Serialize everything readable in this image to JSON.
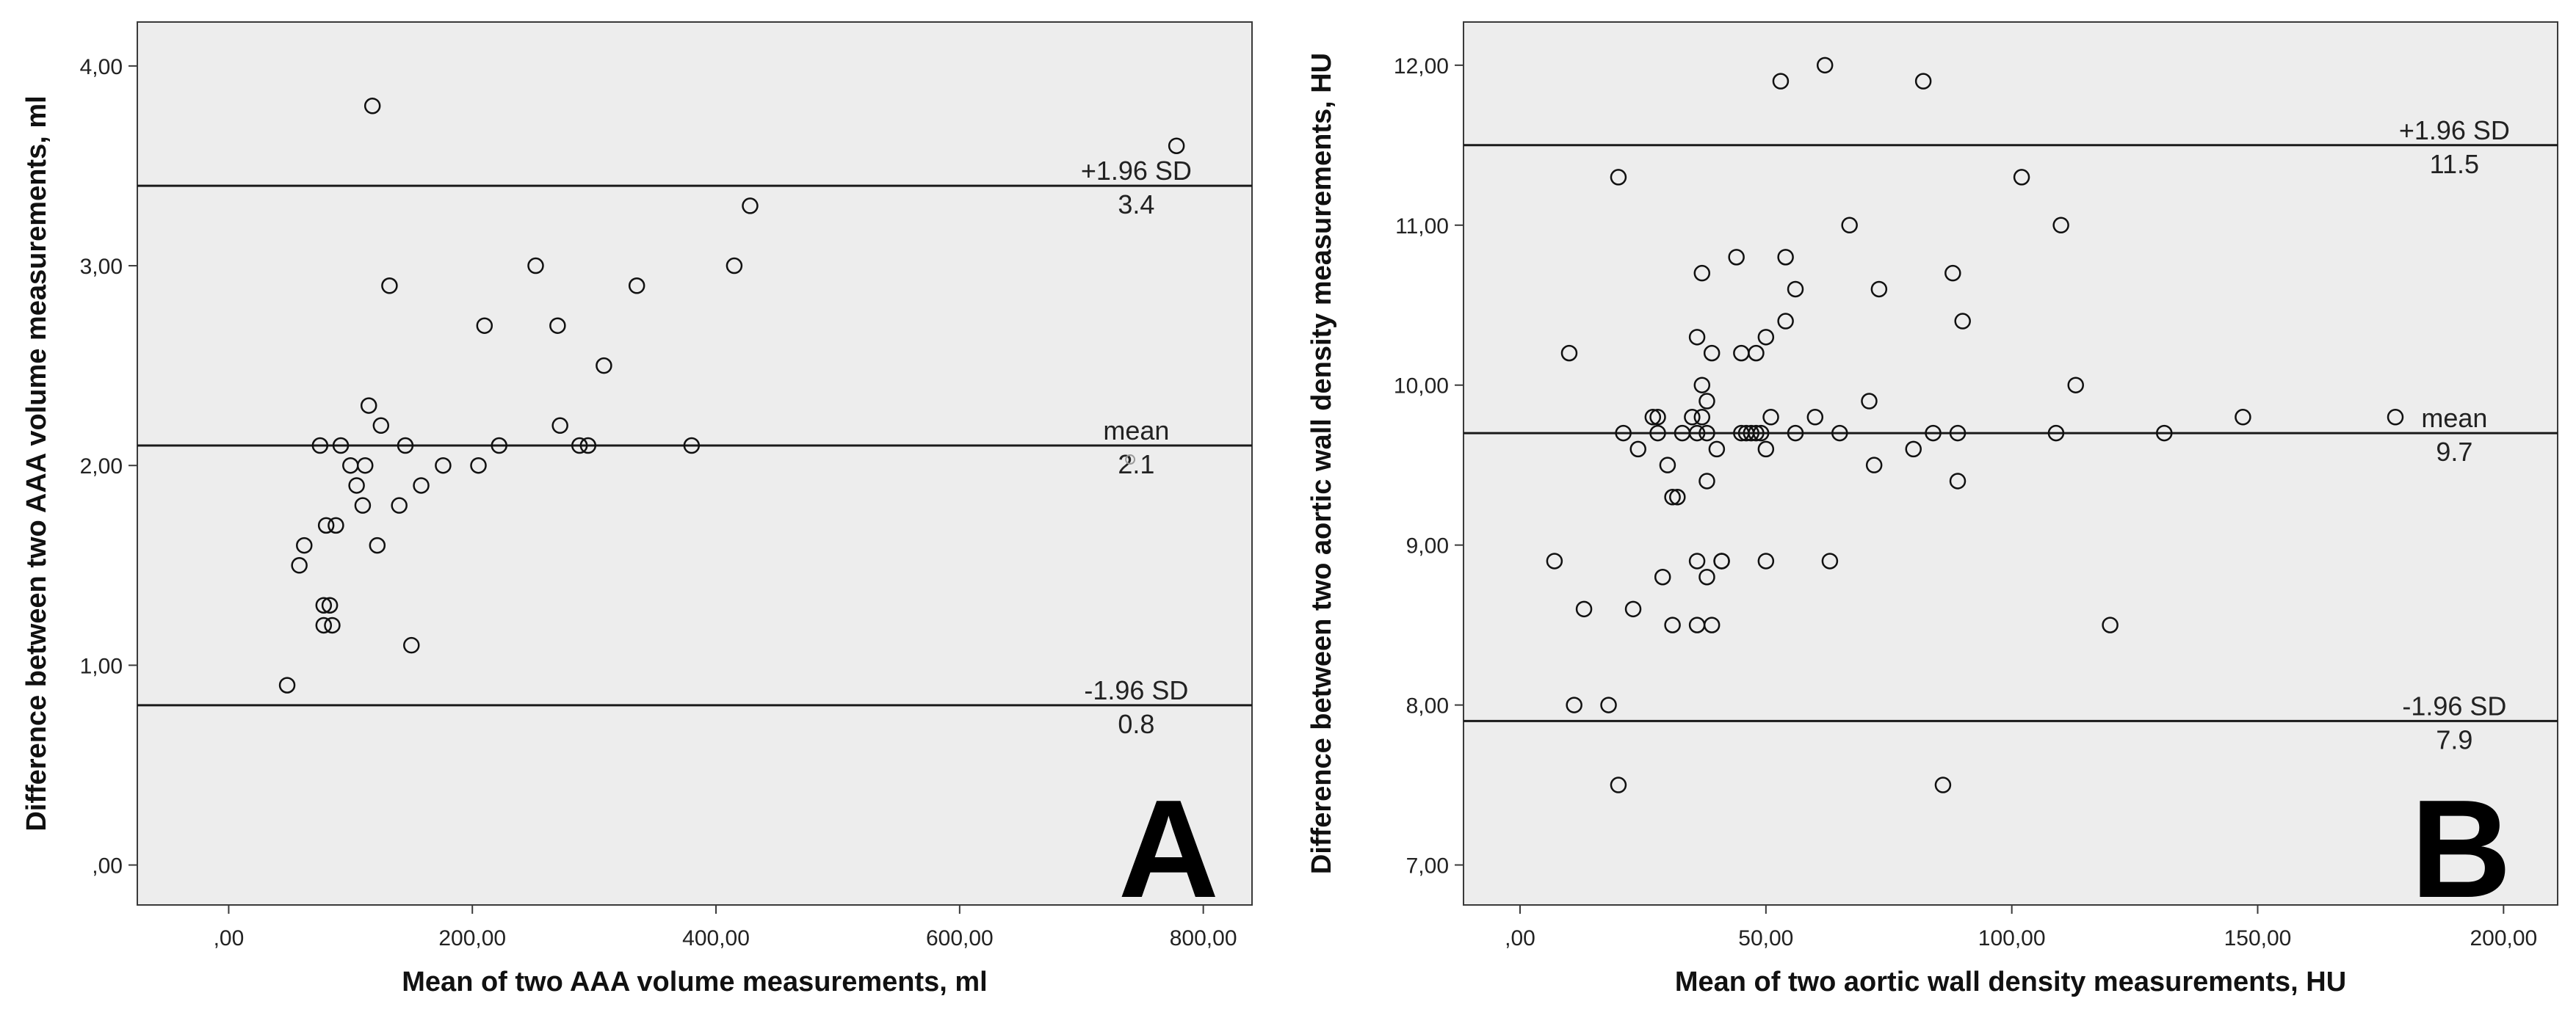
{
  "chart_data": [
    {
      "type": "scatter",
      "panel": "A",
      "xlabel": "Mean of two AAA volume measurements, ml",
      "ylabel": "Difference between two AAA volume measurements, ml",
      "xlim": [
        -75,
        840
      ],
      "ylim": [
        -0.2,
        4.22
      ],
      "x_ticks": [
        0,
        200,
        400,
        600,
        800
      ],
      "x_tick_labels": [
        ",00",
        "200,00",
        "400,00",
        "600,00",
        "800,00"
      ],
      "y_ticks": [
        0,
        1,
        2,
        3,
        4
      ],
      "y_tick_labels": [
        ",00",
        "1,00",
        "2,00",
        "3,00",
        "4,00"
      ],
      "grid": false,
      "reference_lines": [
        {
          "name": "+1.96 SD",
          "value_label": "3.4",
          "y": 3.4,
          "label_x": 745
        },
        {
          "name": "mean",
          "value_label": "2.1",
          "y": 2.1,
          "label_x": 745
        },
        {
          "name": "-1.96 SD",
          "value_label": "0.8",
          "y": 0.8,
          "label_x": 745
        }
      ],
      "points": [
        [
          48,
          0.9
        ],
        [
          58,
          1.5
        ],
        [
          62,
          1.6
        ],
        [
          75,
          2.1
        ],
        [
          78,
          1.3
        ],
        [
          78,
          1.2
        ],
        [
          80,
          1.7
        ],
        [
          83,
          1.3
        ],
        [
          85,
          1.2
        ],
        [
          88,
          1.7
        ],
        [
          92,
          2.1
        ],
        [
          100,
          2.0
        ],
        [
          105,
          1.9
        ],
        [
          110,
          1.8
        ],
        [
          112,
          2.0
        ],
        [
          115,
          2.3
        ],
        [
          118,
          3.8
        ],
        [
          122,
          1.6
        ],
        [
          125,
          2.2
        ],
        [
          132,
          2.9
        ],
        [
          140,
          1.8
        ],
        [
          145,
          2.1
        ],
        [
          150,
          1.1
        ],
        [
          158,
          1.9
        ],
        [
          176,
          2.0
        ],
        [
          205,
          2.0
        ],
        [
          210,
          2.7
        ],
        [
          222,
          2.1
        ],
        [
          252,
          3.0
        ],
        [
          270,
          2.7
        ],
        [
          272,
          2.2
        ],
        [
          288,
          2.1
        ],
        [
          295,
          2.1
        ],
        [
          308,
          2.5
        ],
        [
          335,
          2.9
        ],
        [
          380,
          2.1
        ],
        [
          415,
          3.0
        ],
        [
          428,
          3.3
        ],
        [
          778,
          3.6
        ]
      ],
      "faint_points": [
        [
          740,
          2.03
        ]
      ]
    },
    {
      "type": "scatter",
      "panel": "B",
      "xlabel": "Mean of two aortic wall density measurements, HU",
      "ylabel": "Difference between two aortic wall density measurements, HU",
      "xlim": [
        -11.5,
        211
      ],
      "ylim": [
        6.75,
        12.27
      ],
      "x_ticks": [
        0,
        50,
        100,
        150,
        200
      ],
      "x_tick_labels": [
        ",00",
        "50,00",
        "100,00",
        "150,00",
        "200,00"
      ],
      "y_ticks": [
        7,
        8,
        9,
        10,
        11,
        12
      ],
      "y_tick_labels": [
        "7,00",
        "8,00",
        "9,00",
        "10,00",
        "11,00",
        "12,00"
      ],
      "grid": false,
      "reference_lines": [
        {
          "name": "+1.96 SD",
          "value_label": "11.5",
          "y": 11.5,
          "label_x": 190
        },
        {
          "name": "mean",
          "value_label": "9.7",
          "y": 9.7,
          "label_x": 190
        },
        {
          "name": "-1.96 SD",
          "value_label": "7.9",
          "y": 7.9,
          "label_x": 190
        }
      ],
      "points": [
        [
          7,
          8.9
        ],
        [
          10,
          10.2
        ],
        [
          11,
          8.0
        ],
        [
          13,
          8.6
        ],
        [
          18,
          8.0
        ],
        [
          20,
          11.3
        ],
        [
          20,
          7.5
        ],
        [
          21,
          9.7
        ],
        [
          23,
          8.6
        ],
        [
          24,
          9.6
        ],
        [
          27,
          9.8
        ],
        [
          28,
          9.8
        ],
        [
          28,
          9.7
        ],
        [
          29,
          8.8
        ],
        [
          30,
          9.5
        ],
        [
          31,
          9.3
        ],
        [
          31,
          8.5
        ],
        [
          32,
          9.3
        ],
        [
          33,
          9.7
        ],
        [
          35,
          9.8
        ],
        [
          36,
          9.7
        ],
        [
          36,
          10.3
        ],
        [
          36,
          8.9
        ],
        [
          36,
          8.5
        ],
        [
          37,
          10.7
        ],
        [
          37,
          10.0
        ],
        [
          37,
          9.8
        ],
        [
          38,
          9.9
        ],
        [
          38,
          9.7
        ],
        [
          38,
          9.4
        ],
        [
          38,
          8.8
        ],
        [
          39,
          10.2
        ],
        [
          39,
          8.5
        ],
        [
          40,
          9.6
        ],
        [
          41,
          8.9
        ],
        [
          41,
          8.9
        ],
        [
          44,
          10.8
        ],
        [
          45,
          10.2
        ],
        [
          45,
          9.7
        ],
        [
          46,
          9.7
        ],
        [
          47,
          9.7
        ],
        [
          48,
          10.2
        ],
        [
          48,
          9.7
        ],
        [
          49,
          9.7
        ],
        [
          50,
          10.3
        ],
        [
          50,
          9.6
        ],
        [
          50,
          8.9
        ],
        [
          51,
          9.8
        ],
        [
          53,
          11.9
        ],
        [
          54,
          10.4
        ],
        [
          54,
          10.8
        ],
        [
          56,
          10.6
        ],
        [
          56,
          9.7
        ],
        [
          60,
          9.8
        ],
        [
          62,
          12.0
        ],
        [
          63,
          8.9
        ],
        [
          65,
          9.7
        ],
        [
          67,
          11.0
        ],
        [
          71,
          9.9
        ],
        [
          72,
          9.5
        ],
        [
          73,
          10.6
        ],
        [
          80,
          9.6
        ],
        [
          82,
          11.9
        ],
        [
          84,
          9.7
        ],
        [
          86,
          7.5
        ],
        [
          88,
          10.7
        ],
        [
          89,
          9.4
        ],
        [
          89,
          9.7
        ],
        [
          90,
          10.4
        ],
        [
          102,
          11.3
        ],
        [
          109,
          9.7
        ],
        [
          110,
          11.0
        ],
        [
          113,
          10.0
        ],
        [
          120,
          8.5
        ],
        [
          131,
          9.7
        ],
        [
          147,
          9.8
        ],
        [
          178,
          9.8
        ]
      ]
    }
  ]
}
